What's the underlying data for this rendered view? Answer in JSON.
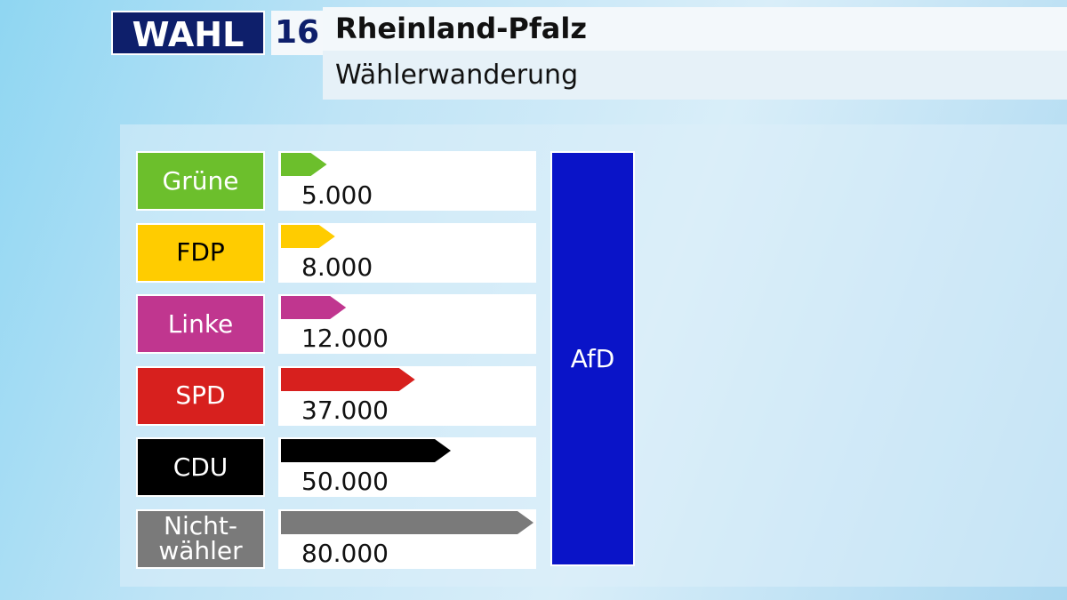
{
  "header": {
    "logo": "WAHL",
    "number": "16",
    "title": "Rheinland-Pfalz",
    "subtitle": "Wählerwanderung"
  },
  "chart_data": {
    "type": "bar",
    "orientation": "horizontal",
    "target": "AfD",
    "target_color": "#0a14c8",
    "categories": [
      "Grüne",
      "FDP",
      "Linke",
      "SPD",
      "CDU",
      "Nicht-\nwähler"
    ],
    "values": [
      5000,
      8000,
      12000,
      37000,
      50000,
      80000
    ],
    "value_labels": [
      "5.000",
      "8.000",
      "12.000",
      "37.000",
      "50.000",
      "80.000"
    ],
    "colors": [
      "#6cbf2c",
      "#ffcc00",
      "#c0368f",
      "#d7201e",
      "#000000",
      "#7a7a7a"
    ],
    "label_text_colors": [
      "#ffffff",
      "#000000",
      "#ffffff",
      "#ffffff",
      "#ffffff",
      "#ffffff"
    ]
  }
}
